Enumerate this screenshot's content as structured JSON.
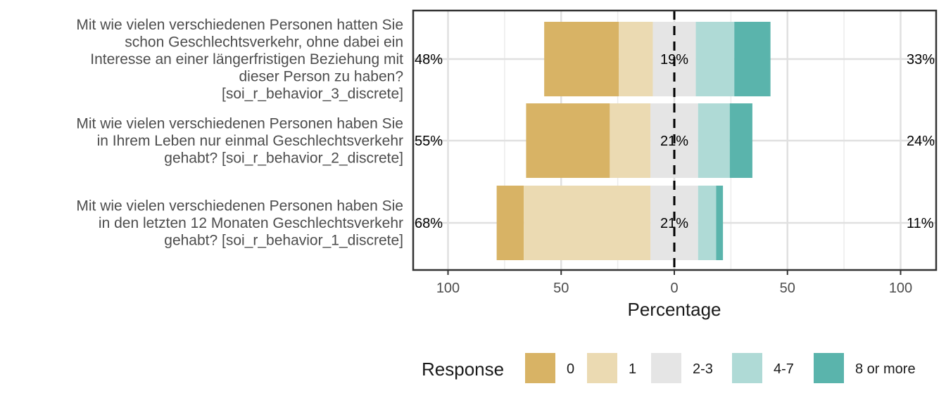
{
  "chart_data": {
    "type": "bar",
    "subtype": "diverging-stacked-likert",
    "xlabel": "Percentage",
    "xlim": [
      -100,
      100
    ],
    "xticks": [
      -100,
      -50,
      0,
      50,
      100
    ],
    "xtick_labels": [
      "100",
      "50",
      "0",
      "50",
      "100"
    ],
    "grid": true,
    "legend": {
      "title": "Response",
      "position": "bottom"
    },
    "categories": [
      "Mit wie vielen verschiedenen Personen hatten Sie schon Geschlechtsverkehr, ohne dabei ein Interesse an einer längerfristigen Beziehung mit dieser Person zu haben? [soi_r_behavior_3_discrete]",
      "Mit wie vielen verschiedenen Personen haben Sie in Ihrem Leben nur einmal Geschlechtsverkehr gehabt? [soi_r_behavior_2_discrete]",
      "Mit wie vielen verschiedenen Personen haben Sie in den letzten 12 Monaten Geschlechtsverkehr gehabt? [soi_r_behavior_1_discrete]"
    ],
    "category_lines": [
      [
        "Mit wie vielen verschiedenen Personen hatten Sie",
        "schon Geschlechtsverkehr, ohne dabei ein",
        "Interesse an einer längerfristigen Beziehung mit",
        "dieser Person zu haben?",
        "[soi_r_behavior_3_discrete]"
      ],
      [
        "Mit wie vielen verschiedenen Personen haben Sie",
        "in Ihrem Leben nur einmal Geschlechtsverkehr",
        "gehabt? [soi_r_behavior_2_discrete]"
      ],
      [
        "Mit wie vielen verschiedenen Personen haben Sie",
        "in den letzten 12 Monaten Geschlechtsverkehr",
        "gehabt? [soi_r_behavior_1_discrete]"
      ]
    ],
    "series": [
      {
        "name": "0",
        "color": "#D8B365",
        "values": [
          33,
          37,
          12
        ]
      },
      {
        "name": "1",
        "color": "#EBDAB2",
        "values": [
          15,
          18,
          56
        ]
      },
      {
        "name": "2-3",
        "color": "#E5E5E5",
        "values": [
          19,
          21,
          21
        ]
      },
      {
        "name": "4-7",
        "color": "#AFDAD6",
        "values": [
          17,
          14,
          8
        ]
      },
      {
        "name": "8 or more",
        "color": "#5AB4AC",
        "values": [
          16,
          10,
          3
        ]
      }
    ],
    "low_labels": [
      "48%",
      "55%",
      "68%"
    ],
    "neutral_labels": [
      "19%",
      "21%",
      "21%"
    ],
    "high_labels": [
      "33%",
      "24%",
      "11%"
    ]
  }
}
